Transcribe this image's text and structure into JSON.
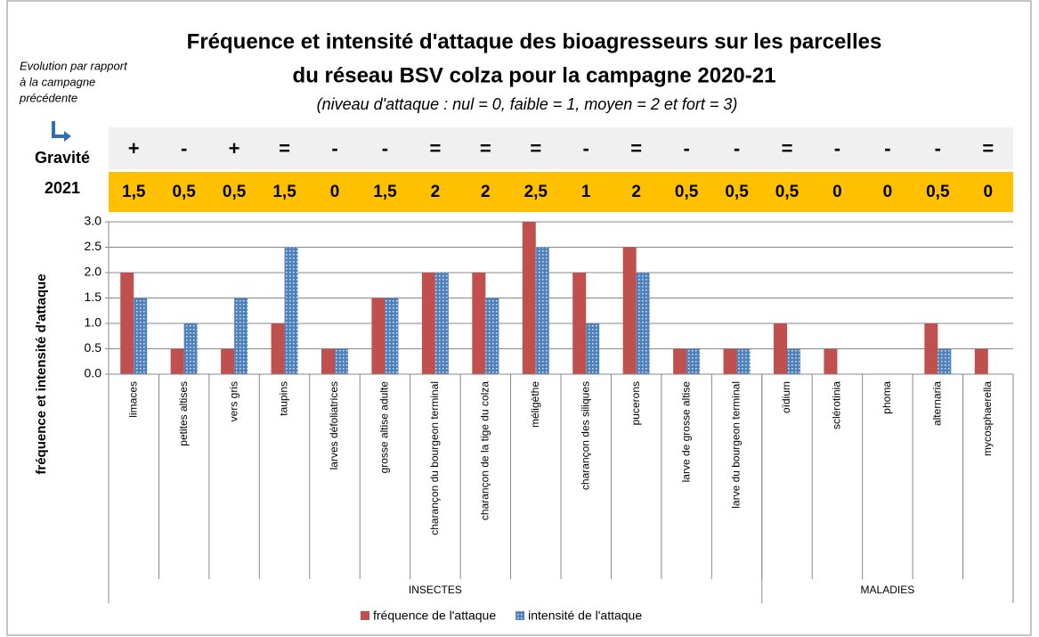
{
  "chart_data": {
    "type": "bar",
    "title": [
      "Fréquence et intensité d'attaque des bioagresseurs sur les parcelles",
      "du réseau BSV colza pour la campagne 2020-21"
    ],
    "subtitle": "(niveau d'attaque : nul = 0, faible = 1, moyen = 2 et fort = 3)",
    "note": [
      "Evolution par rapport",
      "à la campagne",
      "précédente"
    ],
    "gravite_label": [
      "Gravité",
      "2021"
    ],
    "y_label": "fréquence et intensité d'attaque",
    "categories": [
      "limaces",
      "petites altises",
      "vers gris",
      "taupins",
      "larves défoliatrices",
      "grosse altise adulte",
      "charançon du bourgeon terminal",
      "charançon de la tige du colza",
      "méligèthe",
      "charançon des siliques",
      "pucerons",
      "larve de grosse altise",
      "larve du bourgeon terminal",
      "oïdium",
      "sclérotinia",
      "phoma",
      "alternaria",
      "mycosphaerella"
    ],
    "groups": [
      "INSECTES",
      "INSECTES",
      "INSECTES",
      "INSECTES",
      "INSECTES",
      "INSECTES",
      "INSECTES",
      "INSECTES",
      "INSECTES",
      "INSECTES",
      "INSECTES",
      "INSECTES",
      "INSECTES",
      "MALADIES",
      "MALADIES",
      "MALADIES",
      "MALADIES",
      "MALADIES"
    ],
    "evolution": [
      "+",
      "-",
      "+",
      "=",
      "-",
      "-",
      "=",
      "=",
      "=",
      "-",
      "=",
      "-",
      "-",
      "=",
      "-",
      "-",
      "-",
      "="
    ],
    "evolution_colors": {
      "+": "#ff0000",
      "-": "#1fa01f",
      "=": "#000000"
    },
    "gravite": {
      "values": [
        1.5,
        0.5,
        0.5,
        1.5,
        0,
        1.5,
        2,
        2,
        2.5,
        1,
        2,
        0.5,
        0.5,
        0.5,
        0,
        0,
        0.5,
        0
      ],
      "value_labels": [
        "1,5",
        "0,5",
        "0,5",
        "1,5",
        "0",
        "1,5",
        "2",
        "2",
        "2,5",
        "1",
        "2",
        "0,5",
        "0,5",
        "0,5",
        "0",
        "0",
        "0,5",
        "0"
      ]
    },
    "series": [
      {
        "name": "fréquence de l'attaque",
        "color": "#c0504d",
        "values": [
          2,
          0.5,
          0.5,
          1,
          0.5,
          1.5,
          2,
          2,
          3,
          2,
          2.5,
          0.5,
          0.5,
          1,
          0.5,
          0,
          1,
          0.5
        ]
      },
      {
        "name": "intensité de l'attaque",
        "color": "#4f81bd",
        "values": [
          1.5,
          1,
          1.5,
          2.5,
          0.5,
          1.5,
          2,
          1.5,
          2.5,
          1,
          2,
          0.5,
          0.5,
          0.5,
          0,
          0,
          0.5,
          0
        ]
      }
    ],
    "ylim": [
      0,
      3
    ],
    "yticks": [
      {
        "value": 0,
        "label": "0.0"
      },
      {
        "value": 0.5,
        "label": "0.5"
      },
      {
        "value": 1,
        "label": "1.0"
      },
      {
        "value": 1.5,
        "label": "1.5"
      },
      {
        "value": 2,
        "label": "2.0"
      },
      {
        "value": 2.5,
        "label": "2.5"
      },
      {
        "value": 3,
        "label": "3.0"
      }
    ],
    "grid": true
  }
}
